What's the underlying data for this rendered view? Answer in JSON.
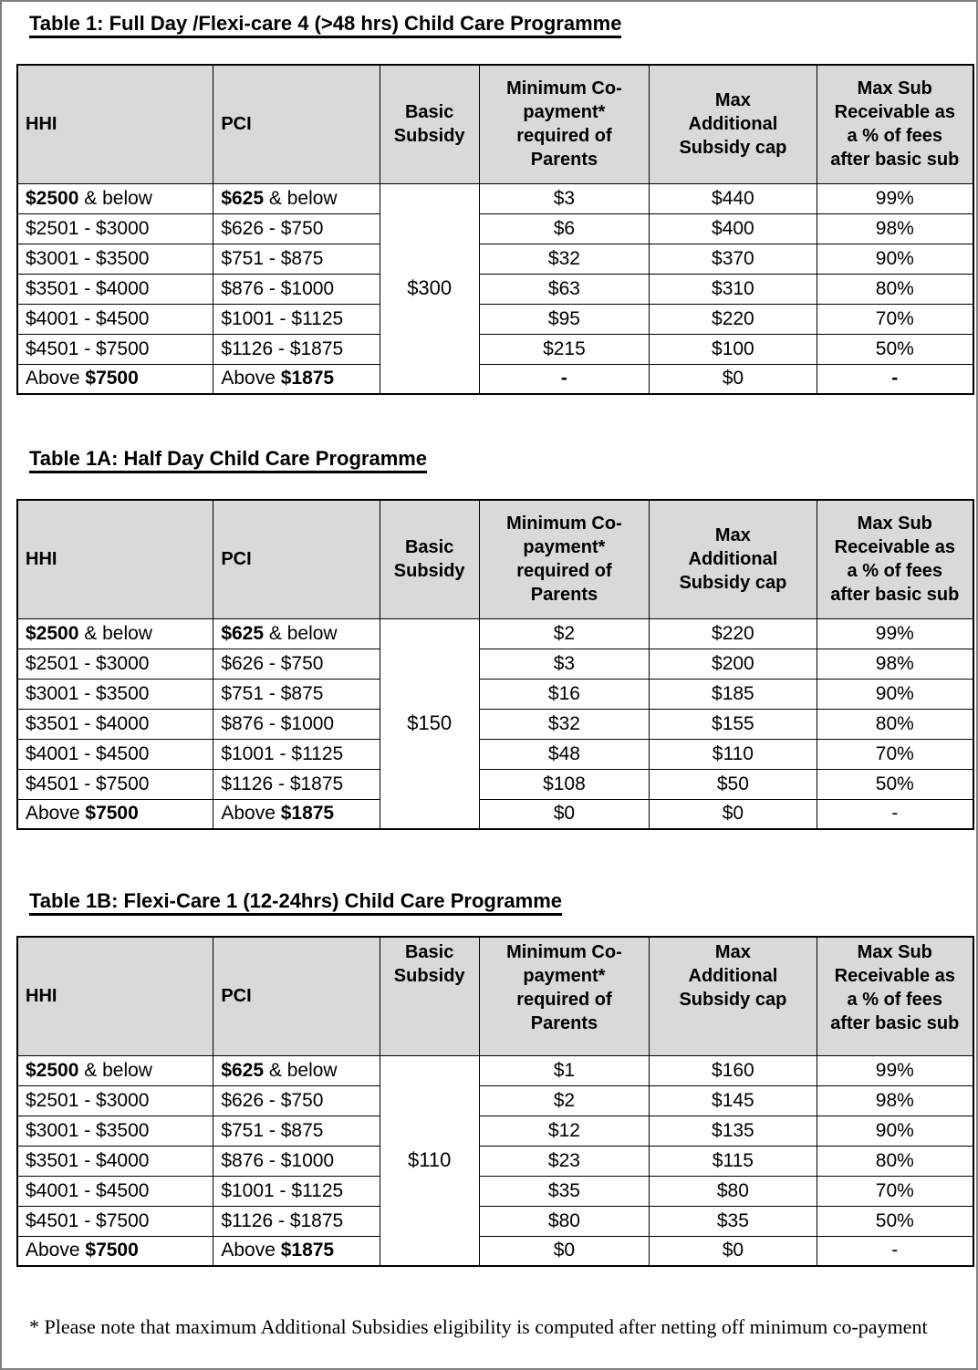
{
  "columns": [
    {
      "name": "hhi",
      "lines": [
        "HHI"
      ]
    },
    {
      "name": "pci",
      "lines": [
        "PCI"
      ]
    },
    {
      "name": "basic-subsidy",
      "lines": [
        "Basic",
        "Subsidy"
      ]
    },
    {
      "name": "min-copayment",
      "lines": [
        "Minimum Co-",
        "payment*",
        "required of",
        "Parents"
      ]
    },
    {
      "name": "max-additional-subsidy",
      "lines": [
        "Max",
        "Additional",
        "Subsidy cap"
      ]
    },
    {
      "name": "max-sub-receivable",
      "lines": [
        "Max Sub",
        "Receivable as",
        "a % of fees",
        "after basic sub"
      ]
    }
  ],
  "tables": [
    {
      "title": "Table 1: Full Day /Flexi-care 4 (>48 hrs) Child Care Programme",
      "basic_subsidy": "$300",
      "rows": [
        [
          [
            [
              "$2500",
              1
            ],
            [
              " & below",
              0
            ]
          ],
          [
            [
              "$625",
              1
            ],
            [
              " & below",
              0
            ]
          ],
          [
            [
              "$3",
              0
            ]
          ],
          [
            [
              "$440",
              0
            ]
          ],
          [
            [
              "99%",
              0
            ]
          ]
        ],
        [
          [
            [
              "$2501 - $3000",
              0
            ]
          ],
          [
            [
              "$626 - $750",
              0
            ]
          ],
          [
            [
              "$6",
              0
            ]
          ],
          [
            [
              "$400",
              0
            ]
          ],
          [
            [
              "98%",
              0
            ]
          ]
        ],
        [
          [
            [
              "$3001 - $3500",
              0
            ]
          ],
          [
            [
              "$751 - $875",
              0
            ]
          ],
          [
            [
              "$32",
              0
            ]
          ],
          [
            [
              "$370",
              0
            ]
          ],
          [
            [
              "90%",
              0
            ]
          ]
        ],
        [
          [
            [
              "$3501 - $4000",
              0
            ]
          ],
          [
            [
              "$876 - $1000",
              0
            ]
          ],
          [
            [
              "$63",
              0
            ]
          ],
          [
            [
              "$310",
              0
            ]
          ],
          [
            [
              "80%",
              0
            ]
          ]
        ],
        [
          [
            [
              "$4001 - $4500",
              0
            ]
          ],
          [
            [
              "$1001 - $1125",
              0
            ]
          ],
          [
            [
              "$95",
              0
            ]
          ],
          [
            [
              "$220",
              0
            ]
          ],
          [
            [
              "70%",
              0
            ]
          ]
        ],
        [
          [
            [
              "$4501 - $7500",
              0
            ]
          ],
          [
            [
              "$1126 - $1875",
              0
            ]
          ],
          [
            [
              "$215",
              0
            ]
          ],
          [
            [
              "$100",
              0
            ]
          ],
          [
            [
              "50%",
              0
            ]
          ]
        ],
        [
          [
            [
              "Above ",
              0
            ],
            [
              "$7500",
              1
            ]
          ],
          [
            [
              "Above ",
              0
            ],
            [
              "$1875",
              1
            ]
          ],
          [
            [
              "-",
              1
            ]
          ],
          [
            [
              "$0",
              0
            ]
          ],
          [
            [
              "-",
              1
            ]
          ]
        ]
      ]
    },
    {
      "title": "Table 1A: Half Day Child Care Programme",
      "basic_subsidy": "$150",
      "rows": [
        [
          [
            [
              "$2500",
              1
            ],
            [
              " & below",
              0
            ]
          ],
          [
            [
              "$625",
              1
            ],
            [
              " & below",
              0
            ]
          ],
          [
            [
              "$2",
              0
            ]
          ],
          [
            [
              "$220",
              0
            ]
          ],
          [
            [
              "99%",
              0
            ]
          ]
        ],
        [
          [
            [
              "$2501 - $3000",
              0
            ]
          ],
          [
            [
              "$626 - $750",
              0
            ]
          ],
          [
            [
              "$3",
              0
            ]
          ],
          [
            [
              "$200",
              0
            ]
          ],
          [
            [
              "98%",
              0
            ]
          ]
        ],
        [
          [
            [
              "$3001 - $3500",
              0
            ]
          ],
          [
            [
              "$751 - $875",
              0
            ]
          ],
          [
            [
              "$16",
              0
            ]
          ],
          [
            [
              "$185",
              0
            ]
          ],
          [
            [
              "90%",
              0
            ]
          ]
        ],
        [
          [
            [
              "$3501 - $4000",
              0
            ]
          ],
          [
            [
              "$876 - $1000",
              0
            ]
          ],
          [
            [
              "$32",
              0
            ]
          ],
          [
            [
              "$155",
              0
            ]
          ],
          [
            [
              "80%",
              0
            ]
          ]
        ],
        [
          [
            [
              "$4001 - $4500",
              0
            ]
          ],
          [
            [
              "$1001 - $1125",
              0
            ]
          ],
          [
            [
              "$48",
              0
            ]
          ],
          [
            [
              "$110",
              0
            ]
          ],
          [
            [
              "70%",
              0
            ]
          ]
        ],
        [
          [
            [
              "$4501 - $7500",
              0
            ]
          ],
          [
            [
              "$1126 - $1875",
              0
            ]
          ],
          [
            [
              "$108",
              0
            ]
          ],
          [
            [
              "$50",
              0
            ]
          ],
          [
            [
              "50%",
              0
            ]
          ]
        ],
        [
          [
            [
              "Above ",
              0
            ],
            [
              "$7500",
              1
            ]
          ],
          [
            [
              "Above ",
              0
            ],
            [
              "$1875",
              1
            ]
          ],
          [
            [
              "$0",
              0
            ]
          ],
          [
            [
              "$0",
              0
            ]
          ],
          [
            [
              "-",
              0
            ]
          ]
        ]
      ]
    },
    {
      "title": "Table 1B: Flexi-Care 1 (12-24hrs) Child Care Programme",
      "basic_subsidy": "$110",
      "rows": [
        [
          [
            [
              "$2500",
              1
            ],
            [
              " & below",
              0
            ]
          ],
          [
            [
              "$625",
              1
            ],
            [
              " & below",
              0
            ]
          ],
          [
            [
              "$1",
              0
            ]
          ],
          [
            [
              "$160",
              0
            ]
          ],
          [
            [
              "99%",
              0
            ]
          ]
        ],
        [
          [
            [
              "$2501 - $3000",
              0
            ]
          ],
          [
            [
              "$626 - $750",
              0
            ]
          ],
          [
            [
              "$2",
              0
            ]
          ],
          [
            [
              "$145",
              0
            ]
          ],
          [
            [
              "98%",
              0
            ]
          ]
        ],
        [
          [
            [
              "$3001 - $3500",
              0
            ]
          ],
          [
            [
              "$751 - $875",
              0
            ]
          ],
          [
            [
              "$12",
              0
            ]
          ],
          [
            [
              "$135",
              0
            ]
          ],
          [
            [
              "90%",
              0
            ]
          ]
        ],
        [
          [
            [
              "$3501 - $4000",
              0
            ]
          ],
          [
            [
              "$876 - $1000",
              0
            ]
          ],
          [
            [
              "$23",
              0
            ]
          ],
          [
            [
              "$115",
              0
            ]
          ],
          [
            [
              "80%",
              0
            ]
          ]
        ],
        [
          [
            [
              "$4001 - $4500",
              0
            ]
          ],
          [
            [
              "$1001 - $1125",
              0
            ]
          ],
          [
            [
              "$35",
              0
            ]
          ],
          [
            [
              "$80",
              0
            ]
          ],
          [
            [
              "70%",
              0
            ]
          ]
        ],
        [
          [
            [
              "$4501 - $7500",
              0
            ]
          ],
          [
            [
              "$1126 - $1875",
              0
            ]
          ],
          [
            [
              "$80",
              0
            ]
          ],
          [
            [
              "$35",
              0
            ]
          ],
          [
            [
              "50%",
              0
            ]
          ]
        ],
        [
          [
            [
              "Above ",
              0
            ],
            [
              "$7500",
              1
            ]
          ],
          [
            [
              "Above ",
              0
            ],
            [
              "$1875",
              1
            ]
          ],
          [
            [
              "$0",
              0
            ]
          ],
          [
            [
              "$0",
              0
            ]
          ],
          [
            [
              "-",
              0
            ]
          ]
        ]
      ]
    }
  ],
  "footnote": "* Please note that maximum Additional Subsidies eligibility is computed after netting off minimum co-payment",
  "colors": {
    "header_fill": "#d9d9d9",
    "border": "#000000",
    "page_border": "#7f7f7f"
  }
}
